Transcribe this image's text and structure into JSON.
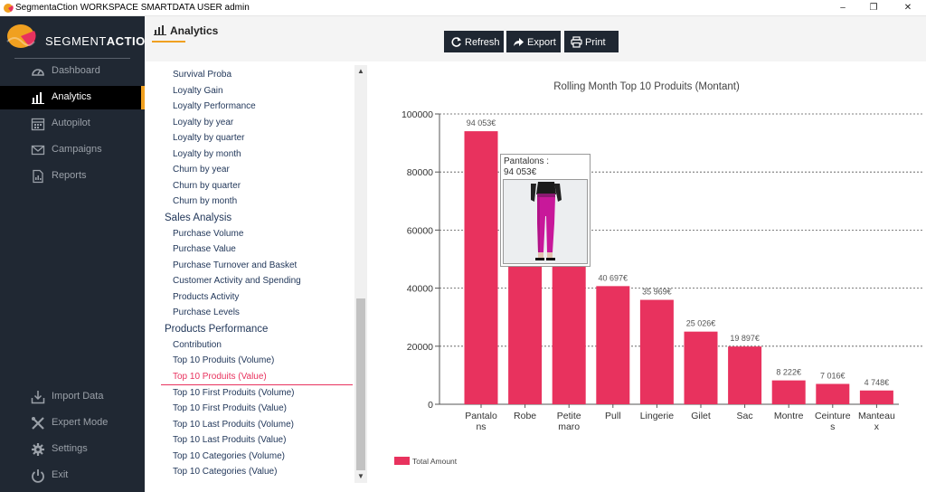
{
  "window": {
    "title": "SegmentaCtion WORKSPACE SMARTDATA USER admin",
    "minimize_glyph": "–",
    "restore_glyph": "❐",
    "close_glyph": "✕"
  },
  "brand": {
    "name_light": "SEGMENT",
    "name_bold": "ACTION",
    "logo_color": "#f0a020"
  },
  "sidebar": {
    "top_items": [
      {
        "label": "Dashboard",
        "icon": "gauge-icon",
        "active": false
      },
      {
        "label": "Analytics",
        "icon": "bar-chart-icon",
        "active": true
      },
      {
        "label": "Autopilot",
        "icon": "calendar-icon",
        "active": false
      },
      {
        "label": "Campaigns",
        "icon": "envelope-icon",
        "active": false
      },
      {
        "label": "Reports",
        "icon": "report-icon",
        "active": false
      }
    ],
    "bottom_items": [
      {
        "label": "Import Data",
        "icon": "download-icon"
      },
      {
        "label": "Expert Mode",
        "icon": "tools-icon"
      },
      {
        "label": "Settings",
        "icon": "gear-icon"
      },
      {
        "label": "Exit",
        "icon": "power-icon"
      }
    ],
    "accent_color": "#f0a020"
  },
  "header": {
    "tab_label": "Analytics",
    "buttons": [
      {
        "label": "Refresh",
        "icon": "refresh-icon"
      },
      {
        "label": "Export",
        "icon": "export-arrow-icon"
      },
      {
        "label": "Print",
        "icon": "printer-icon"
      }
    ]
  },
  "menu": {
    "items_top": [
      "Survival Proba",
      "Loyalty Gain",
      "Loyalty Performance",
      "Loyalty by year",
      "Loyalty by quarter",
      "Loyalty by month",
      "Churn by year",
      "Churn by quarter",
      "Churn by month"
    ],
    "heading_sales": "Sales Analysis",
    "items_sales": [
      "Purchase Volume",
      "Purchase Value",
      "Purchase Turnover and Basket",
      "Customer Activity and Spending",
      "Products Activity",
      "Purchase Levels"
    ],
    "heading_products": "Products Performance",
    "items_products": [
      "Contribution",
      "Top 10 Produits (Volume)",
      "Top 10 Produits (Value)",
      "Top 10 First Produits (Volume)",
      "Top 10 First Produits (Value)",
      "Top 10 Last Produits (Volume)",
      "Top 10 Last Produits (Value)",
      "Top 10 Categories (Volume)",
      "Top 10 Categories (Value)"
    ],
    "selected": "Top 10 Produits (Value)",
    "selected_color": "#e8325e"
  },
  "tooltip": {
    "line1": "Pantalons :",
    "line2": "94 053€"
  },
  "chart_data": {
    "type": "bar",
    "title": "Rolling Month Top 10 Produits (Montant)",
    "categories": [
      "Pantalons",
      "Robe",
      "Petite maro",
      "Pull",
      "Lingerie",
      "Gilet",
      "Sac",
      "Montre",
      "Ceintures",
      "Manteaux"
    ],
    "category_lines": [
      [
        "Pantalo",
        "ns"
      ],
      [
        "Robe"
      ],
      [
        "Petite",
        "maro"
      ],
      [
        "Pull"
      ],
      [
        "Lingerie"
      ],
      [
        "Gilet"
      ],
      [
        "Sac"
      ],
      [
        "Montre"
      ],
      [
        "Ceinture",
        "s"
      ],
      [
        "Manteau",
        "x"
      ]
    ],
    "series": [
      {
        "name": "Total Amount",
        "values": [
          94053,
          55000,
          50000,
          40697,
          35969,
          25026,
          19897,
          8222,
          7016,
          4748
        ],
        "labels": [
          "94 053€",
          "",
          "",
          "40 697€",
          "35 969€",
          "25 026€",
          "19 897€",
          "8 222€",
          "7 016€",
          "4 748€"
        ]
      }
    ],
    "ylim": [
      0,
      100000
    ],
    "yticks": [
      0,
      20000,
      40000,
      60000,
      80000,
      100000
    ],
    "ytick_labels": [
      "0",
      "20000",
      "40000",
      "60000",
      "80000",
      "100000"
    ],
    "grid": true,
    "legend_position": "bottom-left",
    "bar_color": "#e8325e"
  }
}
